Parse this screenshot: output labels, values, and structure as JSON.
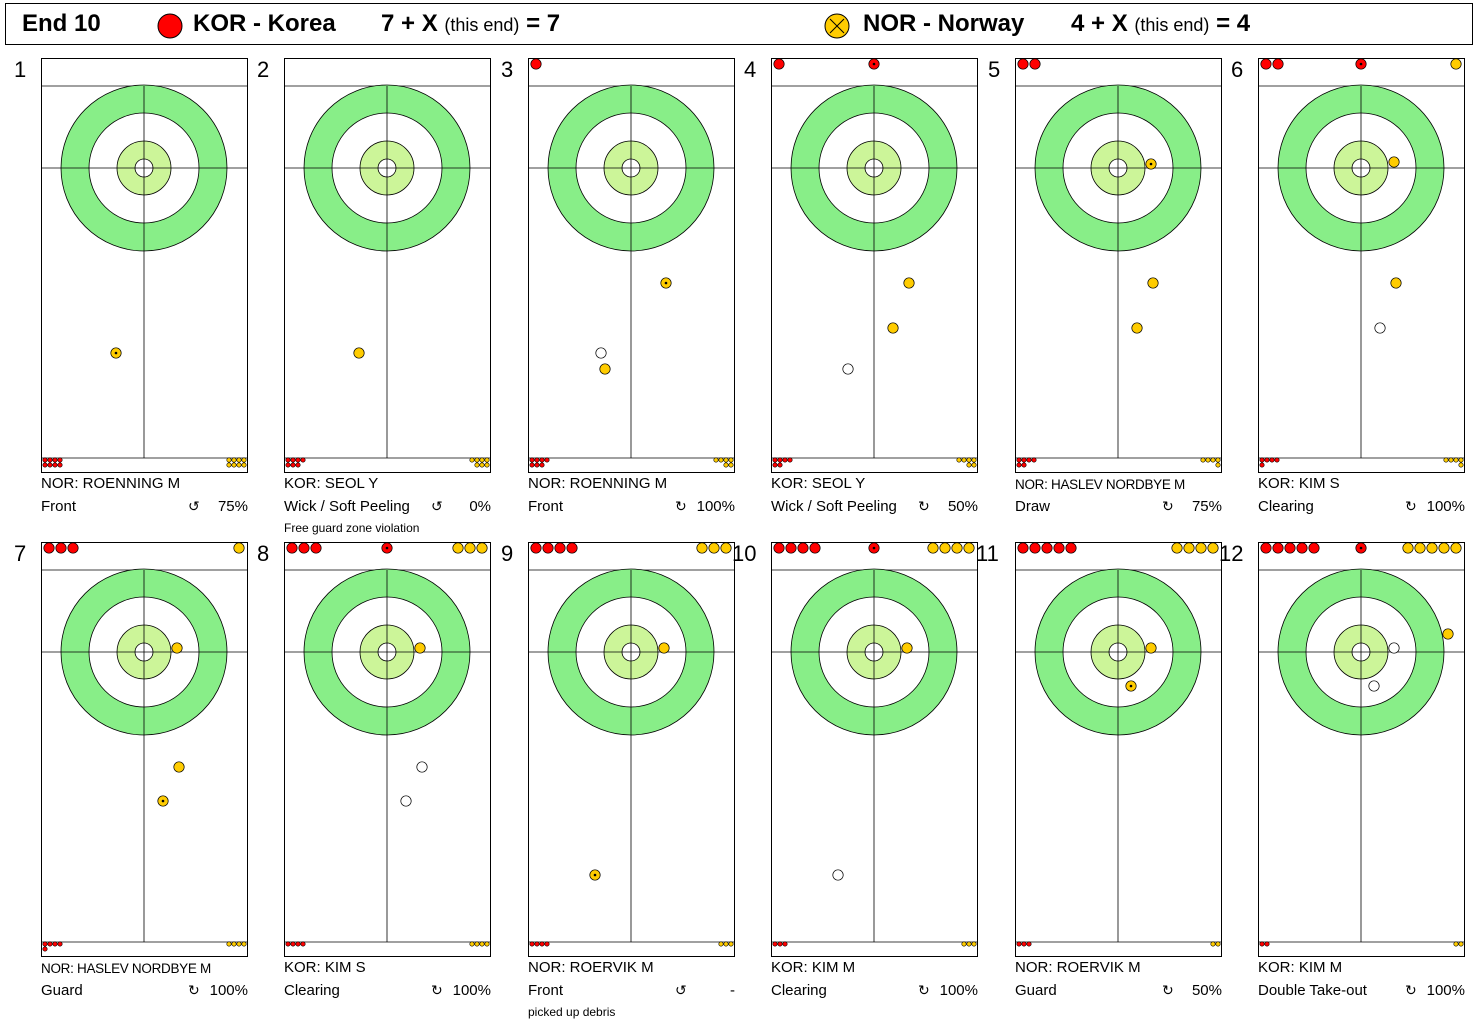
{
  "header": {
    "end_label": "End 10",
    "team1": {
      "name": "KOR - Korea",
      "score_expr": "7 + X",
      "this_end": "(this end)",
      "total": "= 7",
      "color": "#ff0000"
    },
    "team2": {
      "name": "NOR - Norway",
      "score_expr": "4 + X",
      "this_end": "(this end)",
      "total": "= 4",
      "color": "#ffcc00"
    }
  },
  "colors": {
    "ring_outer": "#88ee88",
    "ring_inner": "#ccf599",
    "red_stone": "#ff0000",
    "yellow_stone": "#ffcc00",
    "removed_stone": "#ffffff"
  },
  "rotation_icon": "↻",
  "shots": [
    {
      "num": "1",
      "player": "NOR: ROENNING M",
      "shot": "Front",
      "pct": "75%",
      "note": ""
    },
    {
      "num": "2",
      "player": "KOR: SEOL Y",
      "shot": "Wick / Soft Peeling",
      "pct": "0%",
      "note": "Free guard zone violation"
    },
    {
      "num": "3",
      "player": "NOR: ROENNING M",
      "shot": "Front",
      "pct": "100%",
      "note": ""
    },
    {
      "num": "4",
      "player": "KOR: SEOL Y",
      "shot": "Wick / Soft Peeling",
      "pct": "50%",
      "note": ""
    },
    {
      "num": "5",
      "player": "NOR: HASLEV NORDBYE M",
      "shot": "Draw",
      "pct": "75%",
      "note": ""
    },
    {
      "num": "6",
      "player": "KOR: KIM S",
      "shot": "Clearing",
      "pct": "100%",
      "note": ""
    },
    {
      "num": "7",
      "player": "NOR: HASLEV NORDBYE M",
      "shot": "Guard",
      "pct": "100%",
      "note": ""
    },
    {
      "num": "8",
      "player": "KOR: KIM S",
      "shot": "Clearing",
      "pct": "100%",
      "note": ""
    },
    {
      "num": "9",
      "player": "NOR: ROERVIK M",
      "shot": "Front",
      "pct": "-",
      "note": "picked up debris"
    },
    {
      "num": "10",
      "player": "KOR: KIM M",
      "shot": "Clearing",
      "pct": "100%",
      "note": ""
    },
    {
      "num": "11",
      "player": "NOR: ROERVIK M",
      "shot": "Guard",
      "pct": "50%",
      "note": ""
    },
    {
      "num": "12",
      "player": "KOR: KIM M",
      "shot": "Double Take-out",
      "pct": "100%",
      "note": ""
    }
  ]
}
